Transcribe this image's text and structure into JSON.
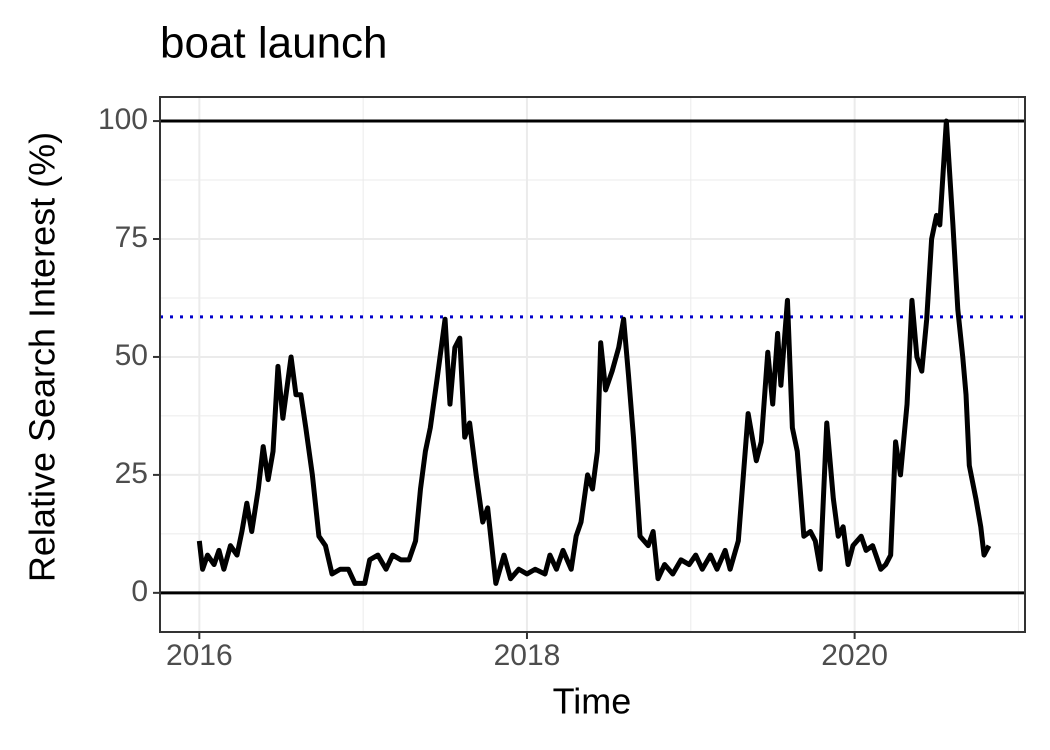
{
  "chart_data": {
    "type": "line",
    "title": "boat launch",
    "x_label": "Time",
    "y_label": "Relative Search Interest (%)",
    "xlim": [
      2015.76,
      2021.04
    ],
    "ylim": [
      -8.3,
      105.1
    ],
    "xticks": [
      2016,
      2018,
      2020
    ],
    "yticks": [
      0,
      25,
      50,
      75,
      100
    ],
    "x_minor_grid": [
      2017,
      2019,
      2021
    ],
    "y_minor_grid": [
      12.5,
      37.5,
      62.5,
      87.5
    ],
    "grid": true,
    "reference_lines": [
      {
        "value": 0,
        "color": "#000000",
        "style": "solid"
      },
      {
        "value": 100,
        "color": "#000000",
        "style": "solid"
      },
      {
        "value": 58.5,
        "color": "#0000cc",
        "style": "dotted"
      }
    ],
    "series": [
      {
        "color": "#000000",
        "x": [
          2016.0,
          2016.02,
          2016.05,
          2016.09,
          2016.12,
          2016.15,
          2016.19,
          2016.23,
          2016.26,
          2016.29,
          2016.32,
          2016.36,
          2016.39,
          2016.42,
          2016.45,
          2016.48,
          2016.51,
          2016.56,
          2016.59,
          2016.62,
          2016.65,
          2016.69,
          2016.73,
          2016.77,
          2016.81,
          2016.86,
          2016.91,
          2016.95,
          2017.01,
          2017.04,
          2017.09,
          2017.14,
          2017.18,
          2017.23,
          2017.28,
          2017.32,
          2017.35,
          2017.38,
          2017.41,
          2017.45,
          2017.5,
          2017.53,
          2017.56,
          2017.59,
          2017.62,
          2017.65,
          2017.69,
          2017.73,
          2017.76,
          2017.81,
          2017.86,
          2017.9,
          2017.95,
          2018.0,
          2018.05,
          2018.11,
          2018.14,
          2018.18,
          2018.22,
          2018.27,
          2018.3,
          2018.33,
          2018.37,
          2018.4,
          2018.43,
          2018.45,
          2018.48,
          2018.52,
          2018.56,
          2018.59,
          2018.62,
          2018.65,
          2018.69,
          2018.74,
          2018.77,
          2018.8,
          2018.84,
          2018.89,
          2018.94,
          2018.99,
          2019.03,
          2019.07,
          2019.12,
          2019.16,
          2019.21,
          2019.24,
          2019.29,
          2019.35,
          2019.4,
          2019.43,
          2019.47,
          2019.5,
          2019.53,
          2019.55,
          2019.59,
          2019.62,
          2019.65,
          2019.69,
          2019.73,
          2019.76,
          2019.79,
          2019.83,
          2019.87,
          2019.9,
          2019.93,
          2019.96,
          2019.99,
          2020.04,
          2020.07,
          2020.11,
          2020.16,
          2020.19,
          2020.22,
          2020.25,
          2020.28,
          2020.32,
          2020.35,
          2020.38,
          2020.41,
          2020.44,
          2020.47,
          2020.5,
          2020.52,
          2020.56,
          2020.6,
          2020.63,
          2020.66,
          2020.68,
          2020.7,
          2020.74,
          2020.77,
          2020.79,
          2020.82
        ],
        "values": [
          11,
          5,
          8,
          6,
          9,
          5,
          10,
          8,
          13,
          19,
          13,
          22,
          31,
          24,
          30,
          48,
          37,
          50,
          42,
          42,
          35,
          25,
          12,
          10,
          4,
          5,
          5,
          2,
          2,
          7,
          8,
          5,
          8,
          7,
          7,
          11,
          22,
          30,
          35,
          45,
          58,
          40,
          52,
          54,
          33,
          36,
          25,
          15,
          18,
          2,
          8,
          3,
          5,
          4,
          5,
          4,
          8,
          5,
          9,
          5,
          12,
          15,
          25,
          22,
          30,
          53,
          43,
          47,
          52,
          58,
          46,
          33,
          12,
          10,
          13,
          3,
          6,
          4,
          7,
          6,
          8,
          5,
          8,
          5,
          9,
          5,
          11,
          38,
          28,
          32,
          51,
          40,
          55,
          44,
          62,
          35,
          30,
          12,
          13,
          11,
          5,
          36,
          20,
          12,
          14,
          6,
          10,
          12,
          9,
          10,
          5,
          6,
          8,
          32,
          25,
          40,
          62,
          50,
          47,
          58,
          75,
          80,
          78,
          100,
          78,
          60,
          50,
          42,
          27,
          20,
          14,
          8,
          10
        ]
      }
    ]
  }
}
